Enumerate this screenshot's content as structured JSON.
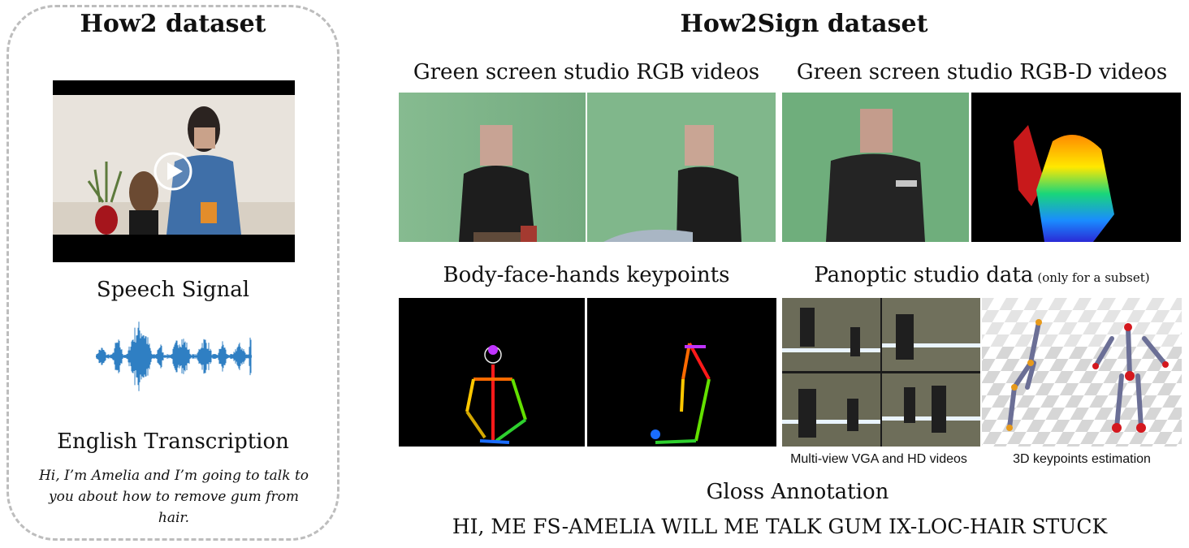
{
  "how2": {
    "title": "How2 dataset",
    "speech_label": "Speech Signal",
    "transcription_label": "English Transcription",
    "transcription_text": "Hi, I’m Amelia and I’m going to talk to you about how to remove gum from hair."
  },
  "how2sign": {
    "title": "How2Sign dataset",
    "rgb_label": "Green screen studio RGB videos",
    "rgbd_label": "Green screen studio RGB-D videos",
    "keypoints_label": "Body-face-hands keypoints",
    "panoptic_label": "Panoptic studio data",
    "panoptic_note": "(only for a subset)",
    "multiview_caption": "Multi-view VGA and HD videos",
    "keypoints3d_caption": "3D keypoints estimation",
    "gloss_label": "Gloss Annotation",
    "gloss_text": "HI, ME FS-AMELIA WILL ME TALK GUM IX-LOC-HAIR STUCK"
  },
  "colors": {
    "green_screen": "#7fb58a",
    "dashed_border": "#bdbdbd",
    "waveform": "#2f7fc3"
  }
}
